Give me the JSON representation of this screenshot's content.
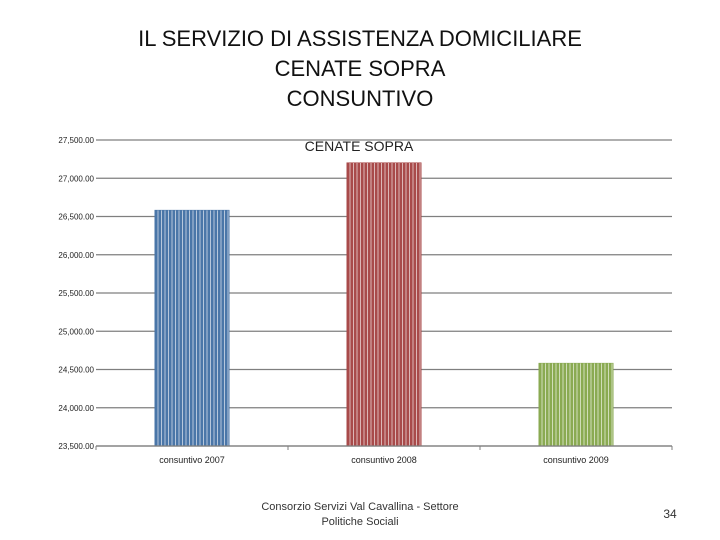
{
  "slide": {
    "title_lines": [
      "IL SERVIZIO DI ASSISTENZA DOMICILIARE",
      "CENATE SOPRA",
      "CONSUNTIVO"
    ],
    "footer": "Consorzio Servizi Val Cavallina - Settore Politiche Sociali",
    "page_number": "34"
  },
  "chart_data": {
    "type": "bar",
    "title": "CENATE SOPRA",
    "categories": [
      "consuntivo 2007",
      "consuntivo 2008",
      "consuntivo 2009"
    ],
    "values": [
      26580,
      27200,
      24580
    ],
    "series": [
      {
        "name": "consuntivo 2007",
        "color": "#4a76a8"
      },
      {
        "name": "consuntivo 2008",
        "color": "#a84a4a"
      },
      {
        "name": "consuntivo 2009",
        "color": "#8aaa52"
      }
    ],
    "ylim": [
      23500,
      27500
    ],
    "yticks": [
      23500,
      24000,
      24500,
      25000,
      25500,
      26000,
      26500,
      27000,
      27500
    ],
    "ytick_labels": [
      "23,500.00",
      "24,000.00",
      "24,500.00",
      "25,000.00",
      "25,500.00",
      "26,000.00",
      "26,500.00",
      "27,000.00",
      "27,500.00"
    ],
    "xlabel": "",
    "ylabel": "",
    "grid": true
  }
}
